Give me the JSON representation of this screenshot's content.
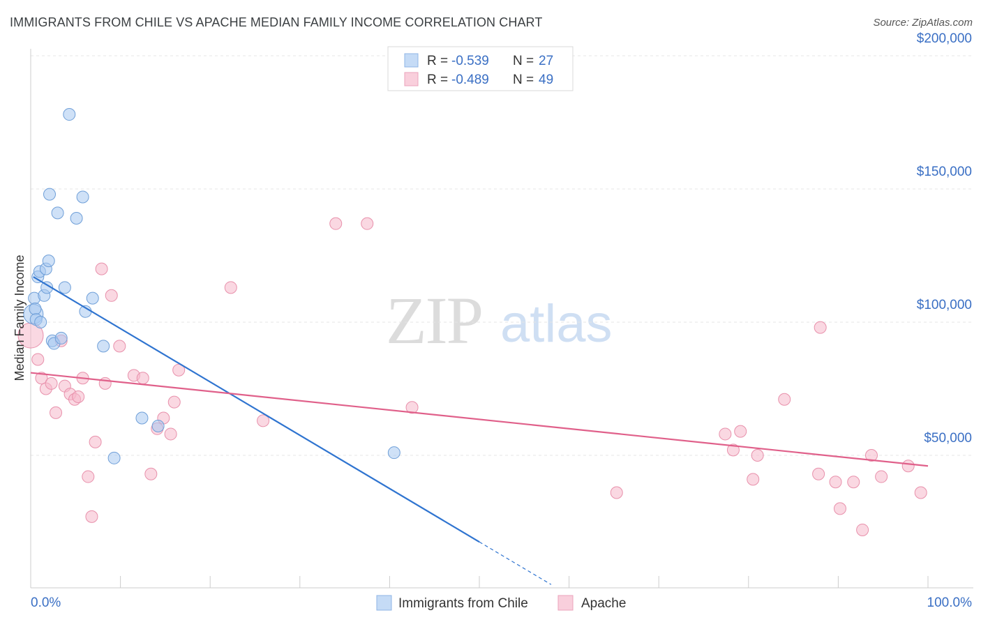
{
  "title": "IMMIGRANTS FROM CHILE VS APACHE MEDIAN FAMILY INCOME CORRELATION CHART",
  "source": "Source: ZipAtlas.com",
  "watermark": {
    "zip": "ZIP",
    "atlas": "atlas"
  },
  "legend_top": [
    {
      "r_label": "R =",
      "r_value": "-0.539",
      "n_label": "N =",
      "n_value": "27",
      "color": "#a8c8f0"
    },
    {
      "r_label": "R =",
      "r_value": "-0.489",
      "n_label": "N =",
      "n_value": "49",
      "color": "#f6b8cb"
    }
  ],
  "legend_bottom": [
    {
      "label": "Immigrants from Chile",
      "color": "#a8c8f0"
    },
    {
      "label": "Apache",
      "color": "#f6b8cb"
    }
  ],
  "chart_data": {
    "type": "scatter",
    "title": "IMMIGRANTS FROM CHILE VS APACHE MEDIAN FAMILY INCOME CORRELATION CHART",
    "xlabel": "",
    "ylabel": "Median Family Income",
    "xlim": [
      0,
      100
    ],
    "ylim": [
      0,
      205000
    ],
    "x_tick_labels": [
      "0.0%",
      "100.0%"
    ],
    "y_ticks": [
      50000,
      100000,
      150000,
      200000
    ],
    "y_tick_labels": [
      "$50,000",
      "$100,000",
      "$150,000",
      "$200,000"
    ],
    "grid": true,
    "series": [
      {
        "name": "Immigrants from Chile",
        "color": "#a8c8f0",
        "stroke": "#6f9fd8",
        "line_color": "#2f74d0",
        "trend": {
          "x0": 0.3,
          "y0": 117000,
          "x1": 50,
          "y1": 17500,
          "dash_to_x": 58,
          "dash_to_y": 1500
        },
        "points": [
          [
            0.3,
            103000
          ],
          [
            0.4,
            109000
          ],
          [
            0.5,
            105000
          ],
          [
            0.6,
            101000
          ],
          [
            0.8,
            117000
          ],
          [
            1.0,
            119000
          ],
          [
            1.5,
            110000
          ],
          [
            1.7,
            120000
          ],
          [
            1.8,
            113000
          ],
          [
            2.0,
            123000
          ],
          [
            2.1,
            148000
          ],
          [
            2.4,
            93000
          ],
          [
            2.6,
            92000
          ],
          [
            3.0,
            141000
          ],
          [
            3.4,
            94000
          ],
          [
            3.8,
            113000
          ],
          [
            4.3,
            178000
          ],
          [
            5.1,
            139000
          ],
          [
            5.8,
            147000
          ],
          [
            6.1,
            104000
          ],
          [
            6.9,
            109000
          ],
          [
            8.1,
            91000
          ],
          [
            9.3,
            49000
          ],
          [
            12.4,
            64000
          ],
          [
            14.2,
            61000
          ],
          [
            40.5,
            51000
          ],
          [
            1.1,
            100000
          ]
        ]
      },
      {
        "name": "Apache",
        "color": "#f6b8cb",
        "stroke": "#e890ab",
        "line_color": "#e0608a",
        "trend": {
          "x0": 0.0,
          "y0": 81000,
          "x1": 100,
          "y1": 46000
        },
        "points": [
          [
            0.0,
            95000
          ],
          [
            0.8,
            86000
          ],
          [
            1.2,
            79000
          ],
          [
            1.7,
            75000
          ],
          [
            2.3,
            77000
          ],
          [
            2.8,
            66000
          ],
          [
            3.4,
            93000
          ],
          [
            3.8,
            76000
          ],
          [
            4.4,
            73000
          ],
          [
            4.9,
            71000
          ],
          [
            5.3,
            72000
          ],
          [
            5.8,
            79000
          ],
          [
            6.4,
            42000
          ],
          [
            6.8,
            27000
          ],
          [
            7.2,
            55000
          ],
          [
            7.9,
            120000
          ],
          [
            8.3,
            77000
          ],
          [
            9.0,
            110000
          ],
          [
            9.9,
            91000
          ],
          [
            11.5,
            80000
          ],
          [
            12.5,
            79000
          ],
          [
            13.4,
            43000
          ],
          [
            14.1,
            60000
          ],
          [
            14.8,
            64000
          ],
          [
            15.6,
            58000
          ],
          [
            16.0,
            70000
          ],
          [
            16.5,
            82000
          ],
          [
            22.3,
            113000
          ],
          [
            25.9,
            63000
          ],
          [
            34.0,
            137000
          ],
          [
            37.5,
            137000
          ],
          [
            42.5,
            68000
          ],
          [
            65.3,
            36000
          ],
          [
            77.4,
            58000
          ],
          [
            78.3,
            52000
          ],
          [
            79.1,
            59000
          ],
          [
            80.5,
            41000
          ],
          [
            81.0,
            50000
          ],
          [
            84.0,
            71000
          ],
          [
            87.8,
            43000
          ],
          [
            88.0,
            98000
          ],
          [
            89.7,
            40000
          ],
          [
            90.2,
            30000
          ],
          [
            91.7,
            40000
          ],
          [
            92.7,
            22000
          ],
          [
            93.7,
            50000
          ],
          [
            94.8,
            42000
          ],
          [
            97.8,
            46000
          ],
          [
            99.2,
            36000
          ]
        ]
      }
    ]
  }
}
